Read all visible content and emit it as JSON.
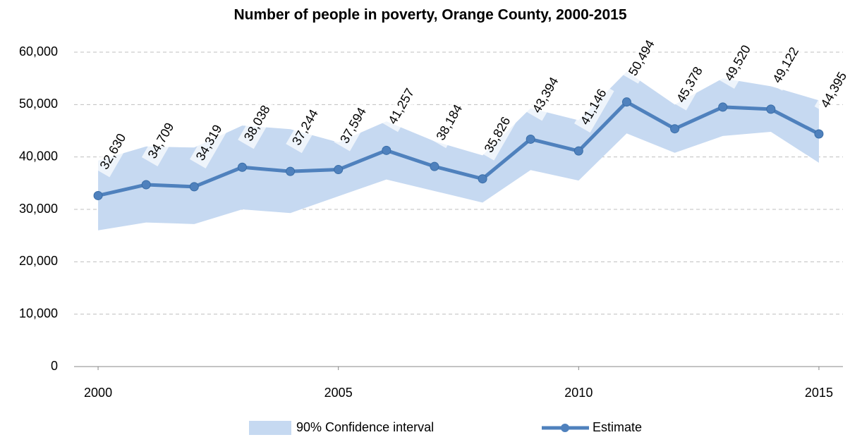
{
  "chart_data": {
    "type": "line-band",
    "title": "Number of people in poverty, Orange County, 2000-2015",
    "x": [
      2000,
      2001,
      2002,
      2003,
      2004,
      2005,
      2006,
      2007,
      2008,
      2009,
      2010,
      2011,
      2012,
      2013,
      2014,
      2015
    ],
    "xlim": [
      1999.5,
      2015.5
    ],
    "xticks": [
      2000,
      2005,
      2010,
      2015
    ],
    "ylim": [
      0,
      60000
    ],
    "yticks": [
      0,
      {
        "value": 10000,
        "label": "10,000"
      },
      {
        "value": 20000,
        "label": "20,000"
      },
      {
        "value": 30000,
        "label": "30,000"
      },
      {
        "value": 40000,
        "label": "40,000"
      },
      {
        "value": 50000,
        "label": "50,000"
      },
      {
        "value": 60000,
        "label": "60,000"
      }
    ],
    "grid": true,
    "legend": "bottom",
    "series": [
      {
        "name": "90% Confidence interval",
        "color": "#c6d9f1",
        "lower": [
          26000,
          27500,
          27200,
          30000,
          29300,
          32500,
          35700,
          33500,
          31300,
          37500,
          35500,
          44500,
          40800,
          44000,
          44800,
          38900
        ],
        "upper": [
          39300,
          42000,
          41800,
          46000,
          45300,
          42800,
          46800,
          43000,
          40300,
          49300,
          47000,
          56300,
          50000,
          55000,
          53500,
          50800
        ]
      },
      {
        "name": "Estimate",
        "color": "#4f81bd",
        "values": [
          32630,
          34709,
          34319,
          38038,
          37244,
          37594,
          41257,
          38184,
          35826,
          43394,
          41146,
          50494,
          45378,
          49520,
          49122,
          44395
        ],
        "value_labels": [
          "32,630",
          "34,709",
          "34,319",
          "38,038",
          "37,244",
          "37,594",
          "41,257",
          "38,184",
          "35,826",
          "43,394",
          "41,146",
          "50,494",
          "45,378",
          "49,520",
          "49,122",
          "44,395"
        ]
      }
    ]
  }
}
